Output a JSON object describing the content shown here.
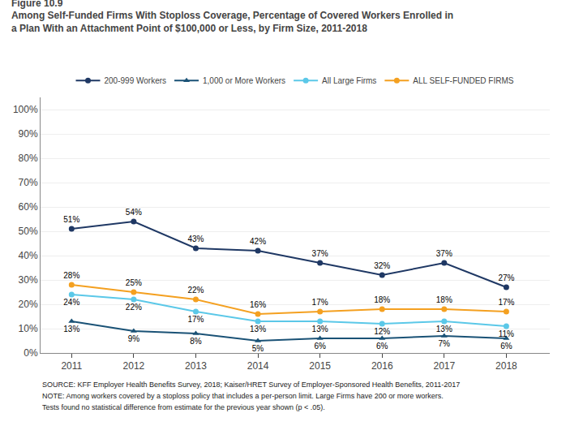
{
  "chart_data": {
    "type": "line",
    "title": "Figure 10.9",
    "subtitle": [
      "Among Self-Funded Firms With Stoploss Coverage, Percentage of Covered Workers Enrolled in",
      "a Plan With an Attachment Point of $100,000 or Less, by Firm Size, 2011-2018"
    ],
    "annotations": [
      "Tests found no statistical difference from estimate for the previous year shown (p < .05).",
      "NOTE: Among workers covered by a stoploss policy that includes a per-person limit. Large Firms have 200 or more workers.",
      "SOURCE: KFF Employer Health Benefits Survey, 2018; Kaiser/HRET Survey of Employer-Sponsored Health Benefits, 2011-2017"
    ],
    "x": [
      2011,
      2012,
      2013,
      2014,
      2015,
      2016,
      2017,
      2018
    ],
    "xlim": [
      2010.5,
      2018.7
    ],
    "xticks": [
      2011,
      2012,
      2013,
      2014,
      2015,
      2016,
      2017,
      2018
    ],
    "ylim": [
      0,
      105
    ],
    "yticks": [
      {
        "value": 0,
        "label": "0%"
      },
      {
        "value": 10,
        "label": "10%"
      },
      {
        "value": 20,
        "label": "20%"
      },
      {
        "value": 30,
        "label": "30%"
      },
      {
        "value": 40,
        "label": "40%"
      },
      {
        "value": 50,
        "label": "50%"
      },
      {
        "value": 60,
        "label": "60%"
      },
      {
        "value": 70,
        "label": "70%"
      },
      {
        "value": 80,
        "label": "80%"
      },
      {
        "value": 90,
        "label": "90%"
      },
      {
        "value": 100,
        "label": "100%"
      }
    ],
    "grid": "y",
    "legend": "upper center",
    "data_labels": true,
    "series": [
      {
        "name": "200-999 Workers",
        "color": "#1f3864",
        "marker": "circle",
        "line_style": "solid",
        "values": [
          51,
          54,
          43,
          42,
          37,
          32,
          37,
          27
        ],
        "value_labels": [
          "51%",
          "54%",
          "43%",
          "42%",
          "37%",
          "32%",
          "37%",
          "27%"
        ]
      },
      {
        "name": "1,000 or More Workers",
        "color": "#1a5276",
        "marker": "triangle-up",
        "line_style": "solid",
        "values": [
          13,
          9,
          8,
          5,
          6,
          6,
          7,
          6
        ],
        "value_labels": [
          "13%",
          "9%",
          "8%",
          "5%",
          "6%",
          "6%",
          "7%",
          "6%"
        ]
      },
      {
        "name": "All Large Firms",
        "color": "#5bc8e8",
        "marker": "circle",
        "line_style": "solid",
        "values": [
          24,
          22,
          17,
          13,
          13,
          12,
          13,
          11
        ],
        "value_labels": [
          "24%",
          "22%",
          "17%",
          "13%",
          "13%",
          "12%",
          "13%",
          "11%"
        ]
      },
      {
        "name": "ALL SELF-FUNDED FIRMS",
        "color": "#f4a020",
        "marker": "circle",
        "line_style": "solid",
        "values": [
          28,
          25,
          22,
          16,
          17,
          18,
          18,
          17
        ],
        "value_labels": [
          "28%",
          "25%",
          "22%",
          "16%",
          "17%",
          "18%",
          "18%",
          "17%"
        ]
      }
    ]
  }
}
